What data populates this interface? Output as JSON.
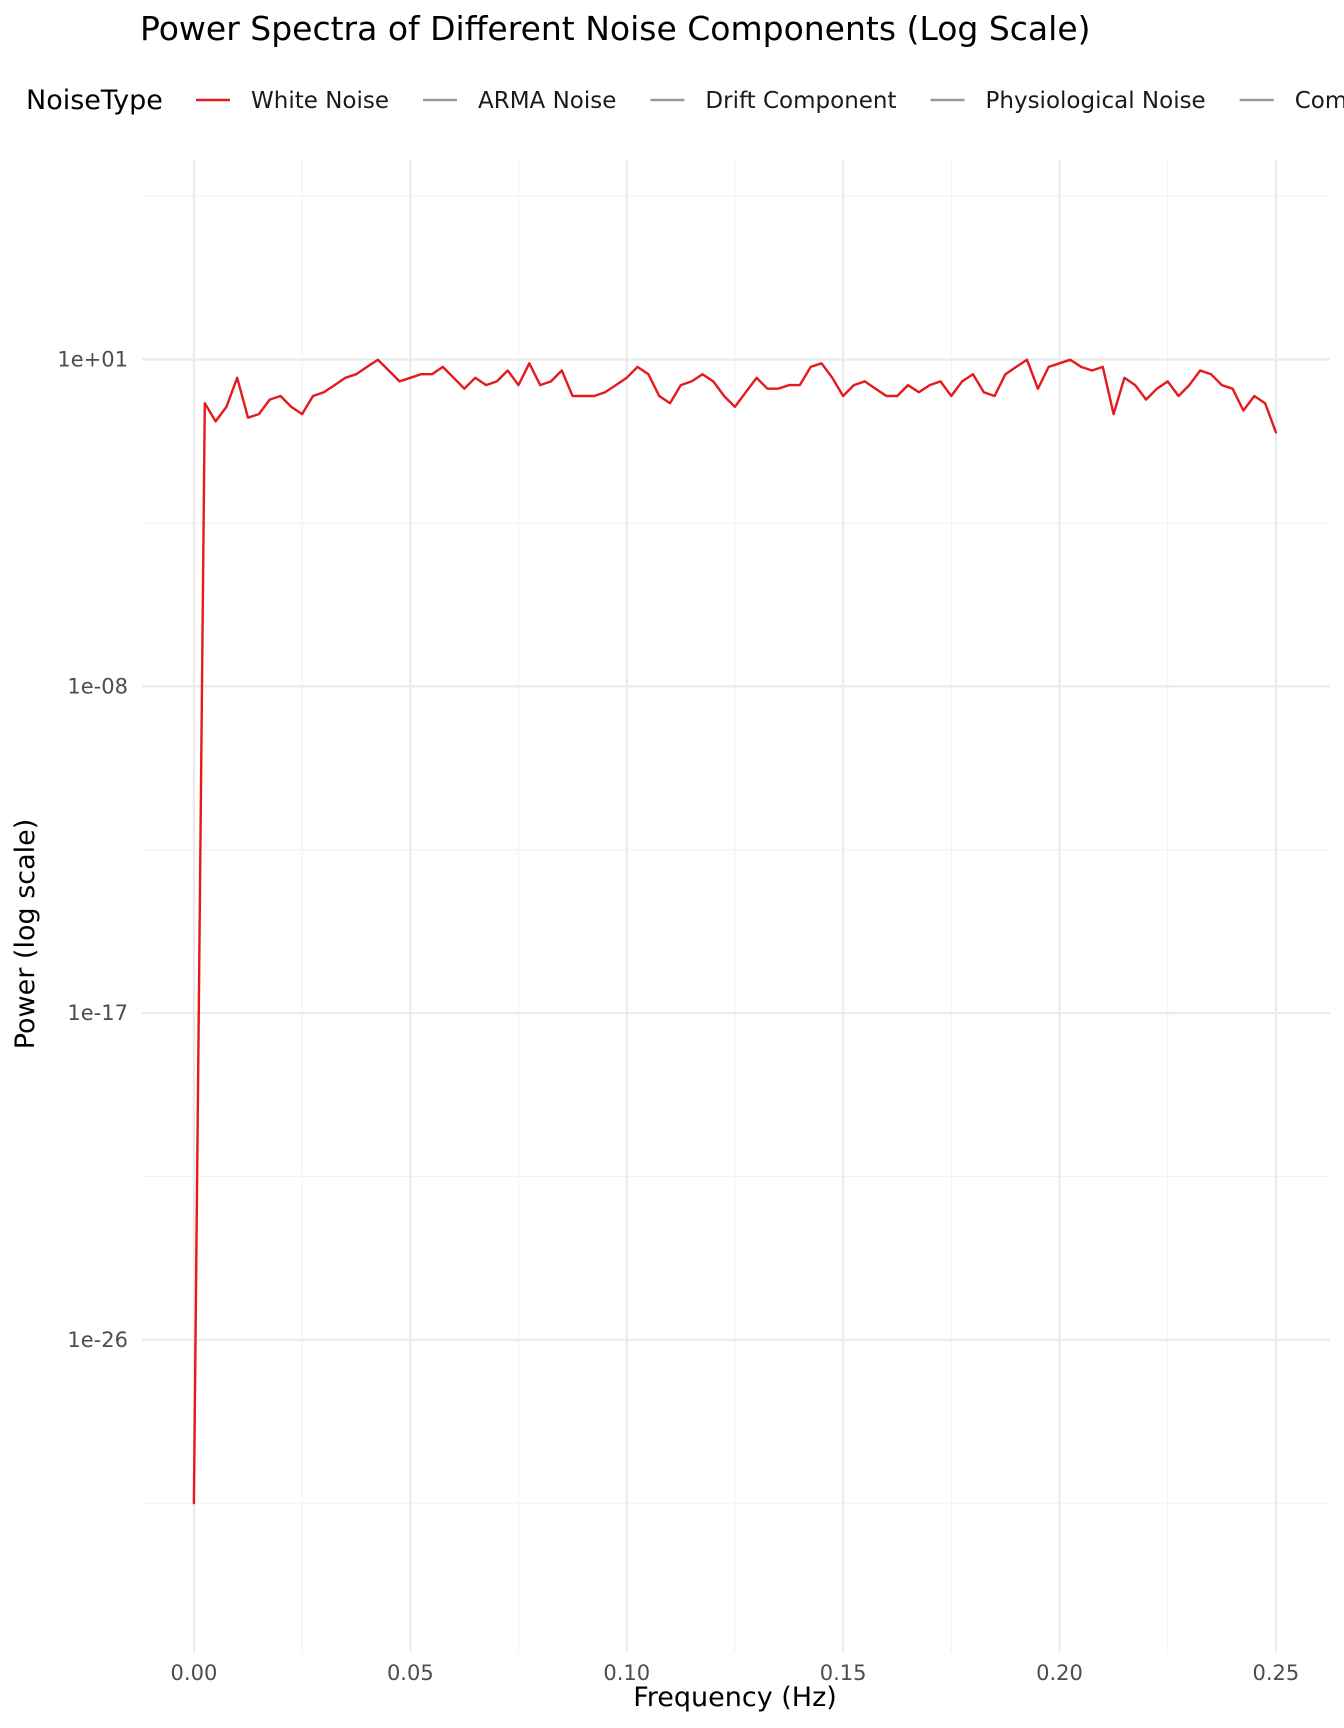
{
  "chart_data": {
    "type": "line",
    "title": "Power Spectra of Different Noise Components (Log Scale)",
    "xlabel": "Frequency (Hz)",
    "ylabel": "Power (log scale)",
    "y_scale": "log10",
    "xlim": [
      -0.012,
      0.2625
    ],
    "ylim_log10": [
      -34.6,
      6.5
    ],
    "x_ticks": [
      0.0,
      0.05,
      0.1,
      0.15,
      0.2,
      0.25
    ],
    "x_tick_labels": [
      "0.00",
      "0.05",
      "0.10",
      "0.15",
      "0.20",
      "0.25"
    ],
    "y_ticks_log10": [
      1,
      -8,
      -17,
      -26
    ],
    "y_tick_labels": [
      "1e+01",
      "1e-08",
      "1e-17",
      "1e-26"
    ],
    "grid": true,
    "legend": {
      "title": "NoiseType",
      "position": "top",
      "entries": [
        "White Noise",
        "ARMA Noise",
        "Drift Component",
        "Physiological Noise",
        "Combined Noise"
      ]
    },
    "series": [
      {
        "name": "White Noise",
        "color": "#E41A1C",
        "x": [
          0.0,
          0.0025,
          0.005,
          0.0075,
          0.01,
          0.0125,
          0.015,
          0.0175,
          0.02,
          0.0225,
          0.025,
          0.0275,
          0.03,
          0.0325,
          0.035,
          0.0375,
          0.04,
          0.0425,
          0.045,
          0.0475,
          0.05,
          0.0525,
          0.055,
          0.0575,
          0.06,
          0.0625,
          0.065,
          0.0675,
          0.07,
          0.0725,
          0.075,
          0.0775,
          0.08,
          0.0825,
          0.085,
          0.0875,
          0.09,
          0.0925,
          0.095,
          0.0975,
          0.1,
          0.1025,
          0.105,
          0.1075,
          0.11,
          0.1125,
          0.115,
          0.1175,
          0.12,
          0.1225,
          0.125,
          0.1275,
          0.13,
          0.1325,
          0.135,
          0.1375,
          0.14,
          0.1425,
          0.145,
          0.1475,
          0.15,
          0.1525,
          0.155,
          0.1575,
          0.16,
          0.1625,
          0.165,
          0.1675,
          0.17,
          0.1725,
          0.175,
          0.1775,
          0.18,
          0.1825,
          0.185,
          0.1875,
          0.19,
          0.1925,
          0.195,
          0.1975,
          0.2,
          0.2025,
          0.205,
          0.2075,
          0.21,
          0.2125,
          0.215,
          0.2175,
          0.22,
          0.2225,
          0.225,
          0.2275,
          0.23,
          0.2325,
          0.235,
          0.2375,
          0.24,
          0.2425,
          0.245,
          0.2475,
          0.25
        ],
        "y_log10": [
          -30.5,
          -0.2,
          -0.7,
          -0.3,
          0.5,
          -0.6,
          -0.5,
          -0.1,
          0.0,
          -0.3,
          -0.5,
          0.0,
          0.1,
          0.3,
          0.5,
          0.6,
          0.8,
          1.0,
          0.7,
          0.4,
          0.5,
          0.6,
          0.6,
          0.8,
          0.5,
          0.2,
          0.5,
          0.3,
          0.4,
          0.7,
          0.3,
          0.9,
          0.3,
          0.4,
          0.7,
          0.0,
          0.0,
          0.0,
          0.1,
          0.3,
          0.5,
          0.8,
          0.6,
          0.0,
          -0.2,
          0.3,
          0.4,
          0.6,
          0.4,
          0.0,
          -0.3,
          0.1,
          0.5,
          0.2,
          0.2,
          0.3,
          0.3,
          0.8,
          0.9,
          0.5,
          0.0,
          0.3,
          0.4,
          0.2,
          0.0,
          0.0,
          0.3,
          0.1,
          0.3,
          0.4,
          0.0,
          0.4,
          0.6,
          0.1,
          0.0,
          0.6,
          0.8,
          1.0,
          0.2,
          0.8,
          0.9,
          1.0,
          0.8,
          0.7,
          0.8,
          -0.5,
          0.5,
          0.3,
          -0.1,
          0.2,
          0.4,
          0.0,
          0.3,
          0.7,
          0.6,
          0.3,
          0.2,
          -0.4,
          0.0,
          -0.2,
          -1.0
        ]
      }
    ]
  }
}
